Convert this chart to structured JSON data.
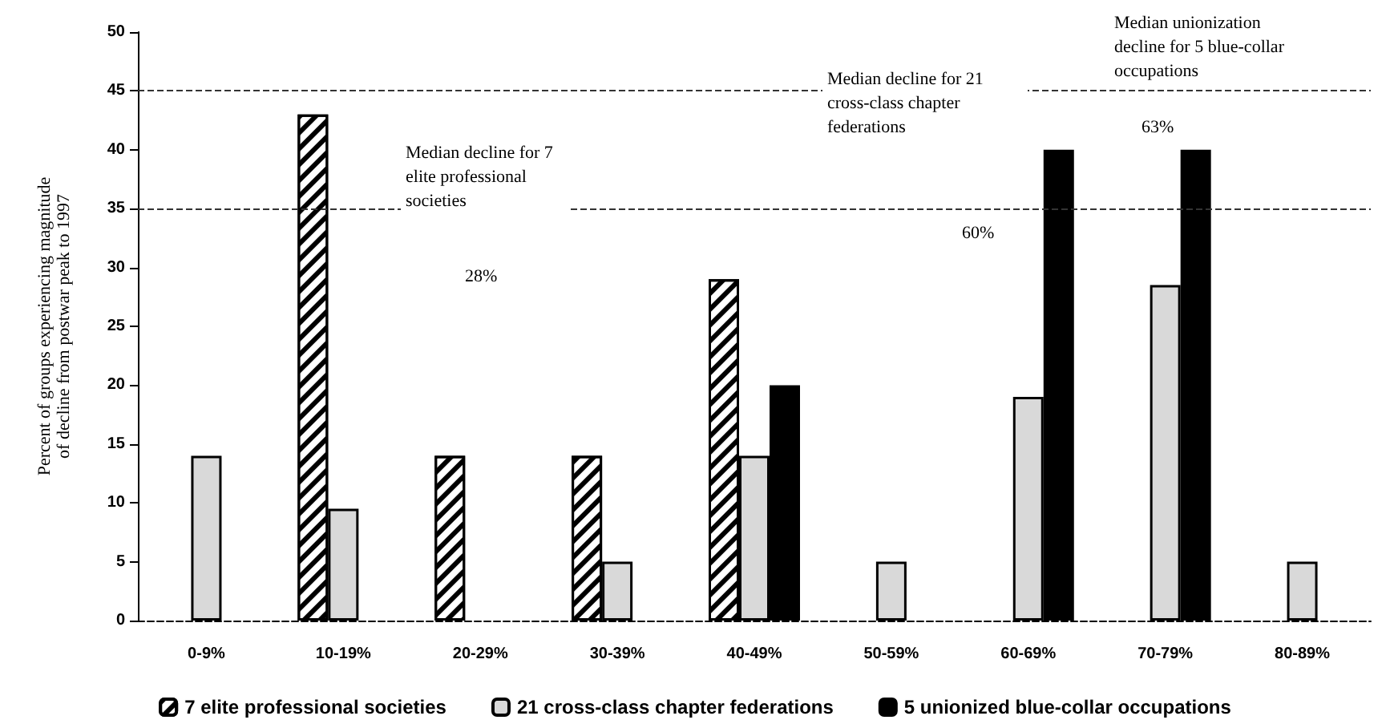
{
  "chart_data": {
    "type": "bar",
    "ylabel": "Percent of groups experiencing magnitude\nof decline from postwar peak to 1997",
    "categories": [
      "0-9%",
      "10-19%",
      "20-29%",
      "30-39%",
      "40-49%",
      "50-59%",
      "60-69%",
      "70-79%",
      "80-89%"
    ],
    "series": [
      {
        "name": "7 elite professional societies",
        "color": "#000000",
        "values": [
          null,
          43,
          14,
          14,
          29,
          null,
          null,
          null,
          null
        ]
      },
      {
        "name": "21 cross-class chapter federations",
        "color": "#d9d9d9",
        "values": [
          14,
          9.5,
          null,
          5,
          14,
          5,
          19,
          28.5,
          5
        ]
      },
      {
        "name": "5 unionized blue-collar occupations",
        "color": "#000000",
        "values": [
          null,
          null,
          null,
          null,
          20,
          null,
          40,
          40,
          null
        ]
      }
    ],
    "ylim": [
      0,
      50
    ],
    "yticks": [
      0,
      5,
      10,
      15,
      20,
      25,
      30,
      35,
      40,
      45,
      50
    ],
    "ref_lines": [
      {
        "axis": "y",
        "value": 45,
        "line_style": "dashed"
      },
      {
        "axis": "y",
        "value": 35,
        "line_style": "dashed"
      }
    ],
    "annotations": [
      "Median decline for 7 elite professional societies",
      "28%",
      "Median decline for 21 cross-class chapter federations",
      "60%",
      "Median unionization decline for 5 blue-collar occupations",
      "63%"
    ],
    "grid": false,
    "legend": "bottom"
  }
}
